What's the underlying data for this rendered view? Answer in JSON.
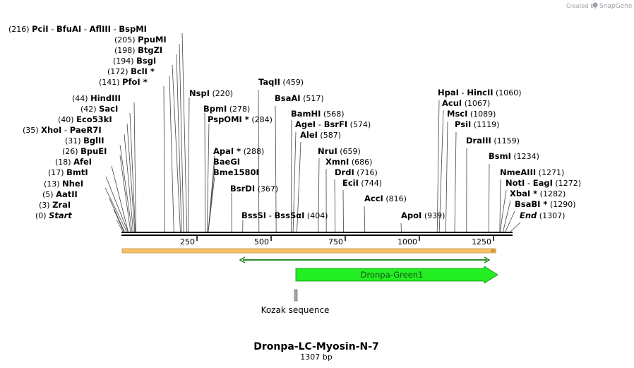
{
  "credit": {
    "prefix": "Created by",
    "brand": "SnapGene"
  },
  "map": {
    "title": "Dronpa-LC-Myosin-N-7",
    "length_label": "1307 bp",
    "total_bp": 1307,
    "axis_ticks": [
      "250",
      "500",
      "750",
      "1000",
      "1250"
    ],
    "axis_tick_values": [
      250,
      500,
      750,
      1000,
      1250
    ]
  },
  "enzyme_rows": [
    {
      "name": "Start",
      "pos": 0,
      "pos_label": "(0)",
      "style": "italic"
    },
    {
      "name": "ZraI",
      "pos": 3,
      "pos_label": "(3)"
    },
    {
      "name": "AatII",
      "pos": 5,
      "pos_label": "(5)"
    },
    {
      "name": "NheI",
      "pos": 13,
      "pos_label": "(13)"
    },
    {
      "name": "BmtI",
      "pos": 17,
      "pos_label": "(17)"
    },
    {
      "name": "AfeI",
      "pos": 18,
      "pos_label": "(18)"
    },
    {
      "name": "BpuEI",
      "pos": 26,
      "pos_label": "(26)"
    },
    {
      "name": "BglII",
      "pos": 31,
      "pos_label": "(31)"
    },
    {
      "name": "XhoI",
      "name2": "PaeR7I",
      "pos": 35,
      "pos_label": "(35)"
    },
    {
      "name": "Eco53kI",
      "pos": 40,
      "pos_label": "(40)"
    },
    {
      "name": "SacI",
      "pos": 42,
      "pos_label": "(42)"
    },
    {
      "name": "HindIII",
      "pos": 44,
      "pos_label": "(44)"
    },
    {
      "name": "PfoI *",
      "pos": 141,
      "pos_label": "(141)"
    },
    {
      "name": "BclI *",
      "pos": 172,
      "pos_label": "(172)"
    },
    {
      "name": "BsgI",
      "pos": 194,
      "pos_label": "(194)"
    },
    {
      "name": "BtgZI",
      "pos": 198,
      "pos_label": "(198)"
    },
    {
      "name": "PpuMI",
      "pos": 205,
      "pos_label": "(205)"
    },
    {
      "name": "PciI",
      "name2": "BfuAI",
      "name3": "AflIII",
      "name4": "BspMI",
      "pos": 216,
      "pos_label": "(216)"
    },
    {
      "name": "NspI",
      "pos": 220,
      "pos_label": "(220)"
    },
    {
      "name": "BpmI",
      "pos": 278,
      "pos_label": "(278)"
    },
    {
      "name": "PspOMI *",
      "pos": 284,
      "pos_label": "(284)"
    },
    {
      "name": "ApaI *",
      "pos": 288,
      "pos_label": "(288)"
    },
    {
      "name": "BaeGI",
      "pos": 288,
      "pos_label": ""
    },
    {
      "name": "Bme1580I",
      "pos": 288,
      "pos_label": ""
    },
    {
      "name": "BsrDI",
      "pos": 367,
      "pos_label": "(367)"
    },
    {
      "name": "BssSI",
      "name2": "BssSαI",
      "pos": 404,
      "pos_label": "(404)"
    },
    {
      "name": "TaqII",
      "pos": 459,
      "pos_label": "(459)"
    },
    {
      "name": "BsaAI",
      "pos": 517,
      "pos_label": "(517)"
    },
    {
      "name": "BamHI",
      "pos": 568,
      "pos_label": "(568)"
    },
    {
      "name": "AgeI",
      "name2": "BsrFI",
      "pos": 574,
      "pos_label": "(574)"
    },
    {
      "name": "AleI",
      "pos": 587,
      "pos_label": "(587)"
    },
    {
      "name": "NruI",
      "pos": 659,
      "pos_label": "(659)"
    },
    {
      "name": "XmnI",
      "pos": 686,
      "pos_label": "(686)"
    },
    {
      "name": "DrdI",
      "pos": 716,
      "pos_label": "(716)"
    },
    {
      "name": "EciI",
      "pos": 744,
      "pos_label": "(744)"
    },
    {
      "name": "AccI",
      "pos": 816,
      "pos_label": "(816)"
    },
    {
      "name": "ApoI",
      "pos": 939,
      "pos_label": "(939)"
    },
    {
      "name": "HpaI",
      "name2": "HincII",
      "pos": 1060,
      "pos_label": "(1060)"
    },
    {
      "name": "AcuI",
      "pos": 1067,
      "pos_label": "(1067)"
    },
    {
      "name": "MscI",
      "pos": 1089,
      "pos_label": "(1089)"
    },
    {
      "name": "PsiI",
      "pos": 1119,
      "pos_label": "(1119)"
    },
    {
      "name": "DraIII",
      "pos": 1159,
      "pos_label": "(1159)"
    },
    {
      "name": "BsmI",
      "pos": 1234,
      "pos_label": "(1234)"
    },
    {
      "name": "NmeAIII",
      "pos": 1271,
      "pos_label": "(1271)"
    },
    {
      "name": "NotI",
      "name2": "EagI",
      "pos": 1272,
      "pos_label": "(1272)"
    },
    {
      "name": "XbaI *",
      "pos": 1282,
      "pos_label": "(1282)"
    },
    {
      "name": "BsaBI *",
      "pos": 1290,
      "pos_label": "(1290)"
    },
    {
      "name": "End",
      "pos": 1307,
      "pos_label": "(1307)",
      "style": "italic"
    }
  ],
  "features": [
    {
      "name": "orange-bar",
      "label": "",
      "start": 0,
      "end": 1307,
      "color": "#f5c16c"
    },
    {
      "name": "green-thin-arrow",
      "label": "",
      "start": 400,
      "end": 1250,
      "color": "#2e8b2e"
    },
    {
      "name": "Dronpa-Green1",
      "label": "Dronpa-Green1",
      "start": 600,
      "end": 1290,
      "color": "#22ee22"
    }
  ],
  "kozak": {
    "label": "Kozak sequence",
    "pos": 600
  }
}
